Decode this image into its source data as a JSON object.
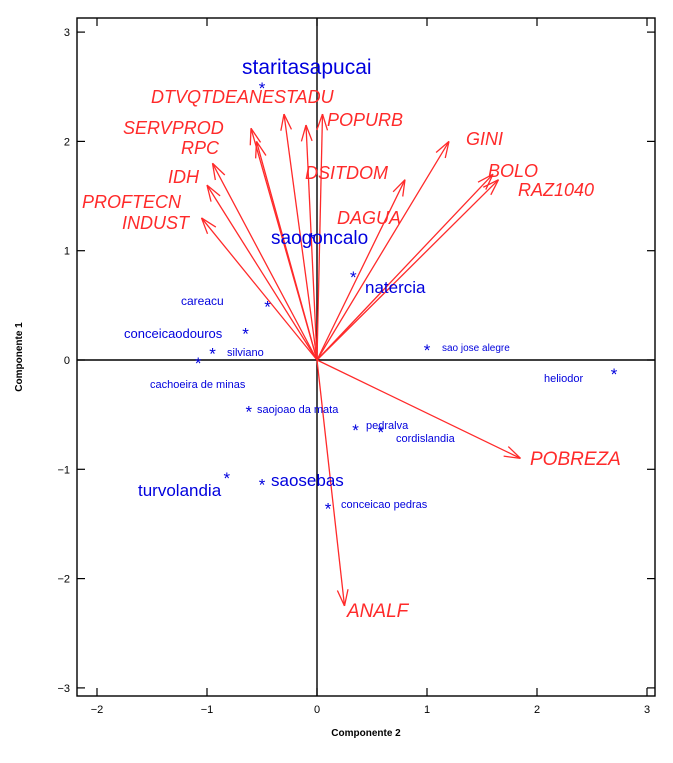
{
  "chart_data": {
    "type": "scatter",
    "title": "",
    "xlabel": "Componente 2",
    "ylabel": "Componente 1",
    "xlim": [
      -2.2,
      3.0
    ],
    "ylim": [
      -3.05,
      3.15
    ],
    "x_ticks": [
      -2,
      -1,
      0,
      1,
      2,
      3
    ],
    "y_ticks": [
      -3,
      -2,
      -1,
      0,
      1,
      2,
      3
    ],
    "x_tick_labels": [
      "−2",
      "−1",
      "0",
      "1",
      "2",
      "3"
    ],
    "y_tick_labels": [
      "−3",
      "−2",
      "−1",
      "0",
      "1",
      "2",
      "3"
    ],
    "reference_lines": {
      "x": 0,
      "y": 0
    },
    "grid": false,
    "legend": "none",
    "colors": {
      "variables": "#ff2a2a",
      "observations": "#0000dd",
      "axes": "#000000"
    },
    "variables": [
      {
        "name": "DTVQTDEANESTADU",
        "x": -0.3,
        "y": 2.25
      },
      {
        "name": "SERVPROD",
        "x": -0.6,
        "y": 2.12
      },
      {
        "name": "RPC",
        "x": -0.55,
        "y": 2.0
      },
      {
        "name": "POPURB",
        "x": 0.05,
        "y": 2.25
      },
      {
        "name": "IDH",
        "x": -0.95,
        "y": 1.8
      },
      {
        "name": "PROFTECN",
        "x": -1.0,
        "y": 1.6
      },
      {
        "name": "INDUST",
        "x": -1.05,
        "y": 1.3
      },
      {
        "name": "DSITDOM",
        "x": -0.1,
        "y": 2.15
      },
      {
        "name": "GINI",
        "x": 1.2,
        "y": 2.0
      },
      {
        "name": "BOLO",
        "x": 1.6,
        "y": 1.7
      },
      {
        "name": "RAZ1040",
        "x": 1.65,
        "y": 1.65
      },
      {
        "name": "DAGUA",
        "x": 0.8,
        "y": 1.65
      },
      {
        "name": "POBREZA",
        "x": 1.85,
        "y": -0.9
      },
      {
        "name": "ANALF",
        "x": 0.25,
        "y": -2.25
      }
    ],
    "observations": [
      {
        "name": "staritasapucai",
        "x": -0.5,
        "y": 2.5
      },
      {
        "name": "saogoncalo",
        "x": -0.05,
        "y": 1.12
      },
      {
        "name": "natercia",
        "x": 0.33,
        "y": 0.77
      },
      {
        "name": "careacu",
        "x": -0.45,
        "y": 0.5
      },
      {
        "name": "conceicaodosouros",
        "x": -0.65,
        "y": 0.25
      },
      {
        "name": "silviano",
        "x": -0.95,
        "y": 0.07
      },
      {
        "name": "cachoeira de minas",
        "x": -1.08,
        "y": -0.02
      },
      {
        "name": "sao jose alegre",
        "x": 1.0,
        "y": 0.1
      },
      {
        "name": "heliodor",
        "x": 2.7,
        "y": -0.12
      },
      {
        "name": "saojoao da mata",
        "x": -0.62,
        "y": -0.46
      },
      {
        "name": "pedralva",
        "x": 0.35,
        "y": -0.63
      },
      {
        "name": "cordislandia",
        "x": 0.58,
        "y": -0.65
      },
      {
        "name": "saosebas",
        "x": -0.5,
        "y": -1.13
      },
      {
        "name": "turvolandia",
        "x": -0.82,
        "y": -1.07
      },
      {
        "name": "conceicao pedras",
        "x": 0.1,
        "y": -1.35
      }
    ]
  },
  "labels": {
    "DTVQTDEANESTADU": "DTVQTDEANESTADU",
    "SERVPROD": "SERVPROD",
    "RPC": "RPC",
    "POPURB": "POPURB",
    "IDH": "IDH",
    "PROFTECN": "PROFTECN",
    "INDUST": "INDUST",
    "DSITDOM": "DSITDOM",
    "GINI": "GINI",
    "BOLO": "BOLO",
    "RAZ1040": "RAZ1040",
    "DAGUA": "DAGUA",
    "POBREZA": "POBREZA",
    "ANALF": "ANALF",
    "staritasapucai": "staritasapucai",
    "saogoncalo": "saogoncalo",
    "natercia": "natercia",
    "careacu": "careacu",
    "conceicaodosouros": "conceicaodouros",
    "silviano": "silviano",
    "cachoeira": "cachoeira de minas",
    "saojosealegre": "sao jose alegre",
    "heliodor": "heliodor",
    "saojoaodamata": "saojoao da mata",
    "pedralva": "pedralva",
    "cordislandia": "cordislandia",
    "saosebas": "saosebas",
    "turvolandia": "turvolandia",
    "conceicaopedras": "conceicao pedras"
  }
}
